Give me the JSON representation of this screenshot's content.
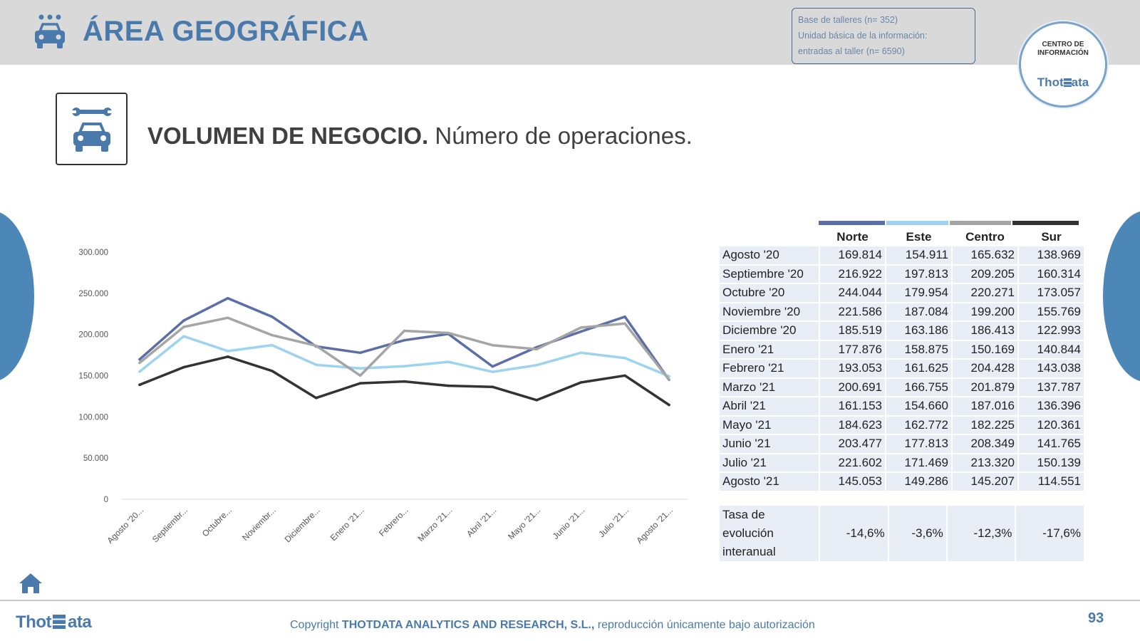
{
  "header": {
    "title": "ÁREA GEOGRÁFICA",
    "info_lines": [
      "Base de talleres (n= 352)",
      "Unidad básica de la información:",
      "entradas al taller (n= 6590)"
    ],
    "badge_line1": "CENTRO DE",
    "badge_line2": "INFORMACIÓN",
    "badge_brand_a": "Thot",
    "badge_brand_b": "ata"
  },
  "subtitle": {
    "bold": "VOLUMEN DE NEGOCIO.",
    "rest": " Número de operaciones."
  },
  "colors": {
    "accent": "#4a7aab",
    "norte": "#5b6ea6",
    "este": "#9dd3ee",
    "centro": "#a5a5a5",
    "sur": "#333333"
  },
  "chart_data": {
    "type": "line",
    "x": [
      "Agosto '20...",
      "Septiembr...",
      "Octubre...",
      "Noviembr...",
      "Diciembre...",
      "Enero '21...",
      "Febrero...",
      "Marzo '21...",
      "Abril '21...",
      "Mayo '21...",
      "Junio '21...",
      "Julio '21...",
      "Agosto '21..."
    ],
    "yticks": [
      "300.000",
      "250.000",
      "200.000",
      "150.000",
      "100.000",
      "50.000",
      "0"
    ],
    "ylim": [
      0,
      300000
    ],
    "grid": false,
    "legend": "none",
    "series": [
      {
        "name": "Norte",
        "color": "#5b6ea6",
        "values": [
          169814,
          216922,
          244044,
          221586,
          185519,
          177876,
          193053,
          200691,
          161153,
          184623,
          203477,
          221602,
          145053
        ]
      },
      {
        "name": "Este",
        "color": "#9dd3ee",
        "values": [
          154911,
          197813,
          179954,
          187084,
          163186,
          158875,
          161625,
          166755,
          154660,
          162772,
          177813,
          171469,
          149286
        ]
      },
      {
        "name": "Centro",
        "color": "#a5a5a5",
        "values": [
          165632,
          209205,
          220271,
          199200,
          186413,
          150169,
          204428,
          201879,
          187016,
          182225,
          208349,
          213320,
          145207
        ]
      },
      {
        "name": "Sur",
        "color": "#333333",
        "values": [
          138969,
          160314,
          173057,
          155769,
          122993,
          140844,
          143038,
          137787,
          136396,
          120361,
          141765,
          150139,
          114551
        ]
      }
    ]
  },
  "table": {
    "headers": [
      "Norte",
      "Este",
      "Centro",
      "Sur"
    ],
    "rows": [
      {
        "label": "Agosto '20",
        "values": [
          "169.814",
          "154.911",
          "165.632",
          "138.969"
        ]
      },
      {
        "label": "Septiembre '20",
        "values": [
          "216.922",
          "197.813",
          "209.205",
          "160.314"
        ]
      },
      {
        "label": "Octubre '20",
        "values": [
          "244.044",
          "179.954",
          "220.271",
          "173.057"
        ]
      },
      {
        "label": "Noviembre '20",
        "values": [
          "221.586",
          "187.084",
          "199.200",
          "155.769"
        ]
      },
      {
        "label": "Diciembre '20",
        "values": [
          "185.519",
          "163.186",
          "186.413",
          "122.993"
        ]
      },
      {
        "label": "Enero '21",
        "values": [
          "177.876",
          "158.875",
          "150.169",
          "140.844"
        ]
      },
      {
        "label": "Febrero '21",
        "values": [
          "193.053",
          "161.625",
          "204.428",
          "143.038"
        ]
      },
      {
        "label": "Marzo '21",
        "values": [
          "200.691",
          "166.755",
          "201.879",
          "137.787"
        ]
      },
      {
        "label": "Abril '21",
        "values": [
          "161.153",
          "154.660",
          "187.016",
          "136.396"
        ]
      },
      {
        "label": "Mayo '21",
        "values": [
          "184.623",
          "162.772",
          "182.225",
          "120.361"
        ]
      },
      {
        "label": "Junio '21",
        "values": [
          "203.477",
          "177.813",
          "208.349",
          "141.765"
        ]
      },
      {
        "label": "Julio '21",
        "values": [
          "221.602",
          "171.469",
          "213.320",
          "150.139"
        ]
      },
      {
        "label": "Agosto '21",
        "values": [
          "145.053",
          "149.286",
          "145.207",
          "114.551"
        ]
      }
    ],
    "tasa_label": "Tasa de evolución interanual",
    "tasa_values": [
      "-14,6%",
      "-3,6%",
      "-12,3%",
      "-17,6%"
    ]
  },
  "footer": {
    "logo_a": "Thot",
    "logo_b": "ata",
    "copyright_prefix": "Copyright ",
    "copyright_company": "THOTDATA ANALYTICS AND RESEARCH, S.L.,",
    "copyright_suffix": " reproducción únicamente bajo autorización",
    "page_number": "93"
  }
}
